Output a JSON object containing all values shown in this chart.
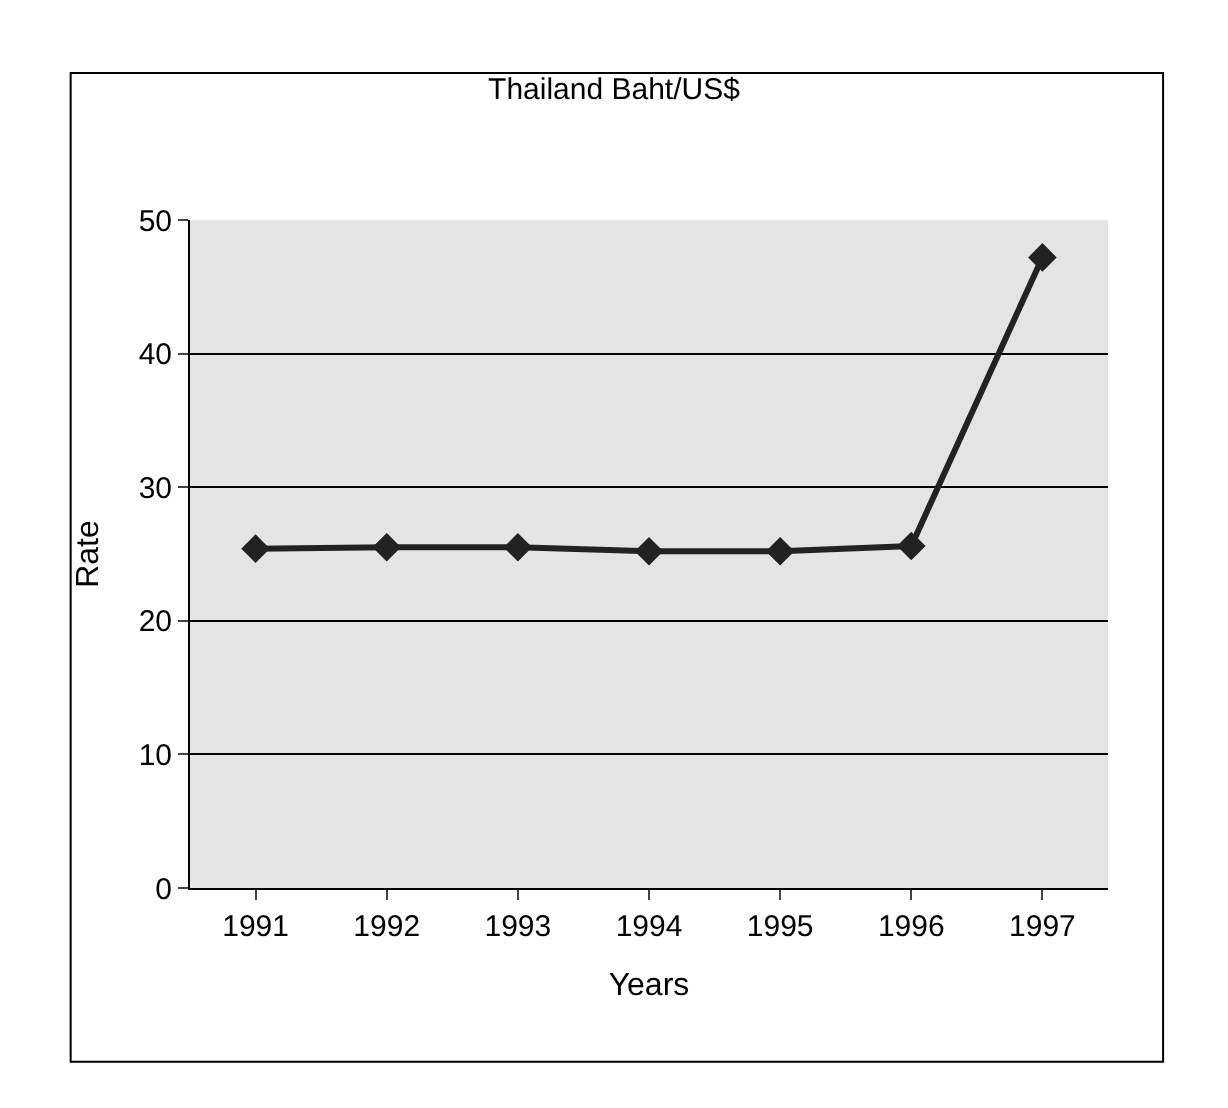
{
  "chart_data": {
    "type": "line",
    "title": "Thailand Baht/US$",
    "xlabel": "Years",
    "ylabel": "Rate",
    "categories": [
      "1991",
      "1992",
      "1993",
      "1994",
      "1995",
      "1996",
      "1997"
    ],
    "series": [
      {
        "color": "#222222",
        "values": [
          25.4,
          25.5,
          25.5,
          25.2,
          25.2,
          25.6,
          47.2
        ]
      }
    ],
    "ylim": [
      0,
      50
    ],
    "yticks": [
      0,
      10,
      20,
      30,
      40,
      50
    ],
    "grid": "y",
    "legend": false,
    "marker": "diamond",
    "line_style": "solid"
  }
}
